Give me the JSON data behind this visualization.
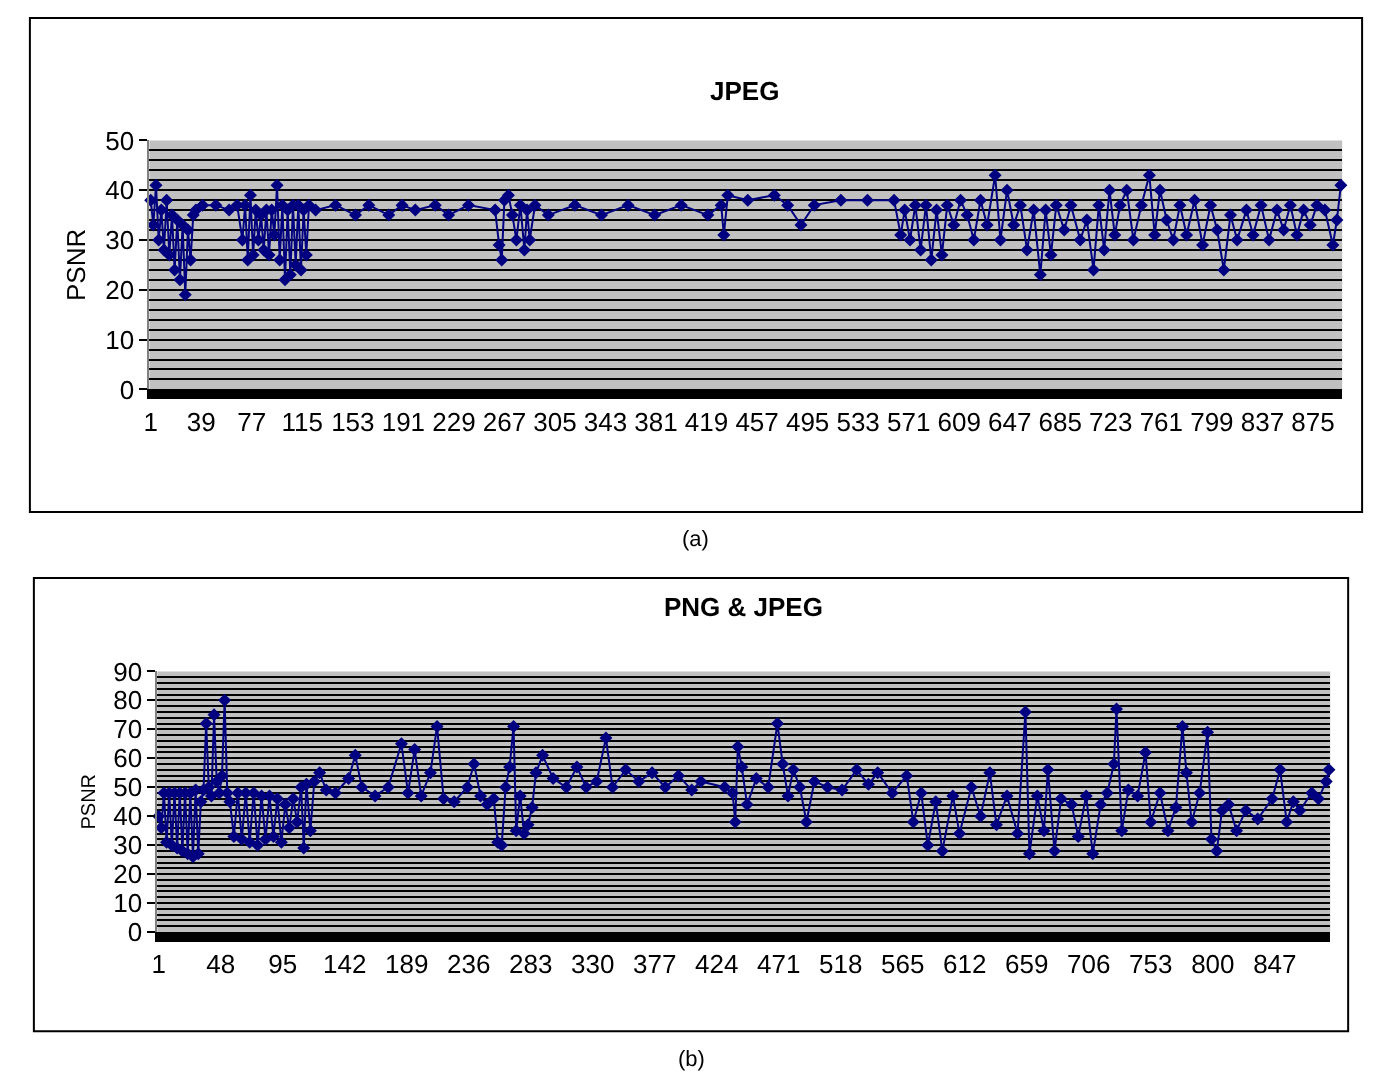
{
  "chart_data": [
    {
      "type": "line",
      "title": "JPEG",
      "ylabel": "PSNR",
      "xlim": [
        0,
        897
      ],
      "ylim": [
        0,
        50
      ],
      "xticks": [
        1,
        39,
        77,
        115,
        153,
        191,
        229,
        267,
        305,
        343,
        381,
        419,
        457,
        495,
        533,
        571,
        609,
        647,
        685,
        723,
        761,
        799,
        837,
        875
      ],
      "yticks": [
        0,
        10,
        20,
        30,
        40,
        50
      ],
      "grid": "y",
      "marker": "diamond",
      "annotations": [
        "(a)"
      ],
      "series": [
        {
          "color": "#000080",
          "x": [
            1,
            3,
            5,
            7,
            9,
            11,
            13,
            15,
            17,
            19,
            21,
            23,
            25,
            27,
            29,
            31,
            33,
            35,
            40,
            50,
            60,
            66,
            70,
            72,
            74,
            76,
            78,
            80,
            82,
            84,
            86,
            88,
            90,
            92,
            94,
            96,
            98,
            100,
            102,
            104,
            106,
            108,
            110,
            112,
            114,
            116,
            118,
            120,
            125,
            140,
            155,
            165,
            180,
            190,
            200,
            215,
            225,
            240,
            260,
            263,
            265,
            267,
            270,
            273,
            276,
            279,
            282,
            284,
            286,
            290,
            300,
            320,
            340,
            360,
            380,
            400,
            420,
            430,
            432,
            435,
            450,
            470,
            480,
            490,
            500,
            520,
            540,
            560,
            565,
            568,
            572,
            576,
            580,
            584,
            588,
            592,
            596,
            600,
            605,
            610,
            615,
            620,
            625,
            630,
            636,
            640,
            645,
            650,
            655,
            660,
            665,
            670,
            674,
            678,
            682,
            688,
            693,
            700,
            705,
            710,
            714,
            718,
            722,
            726,
            730,
            735,
            740,
            746,
            752,
            756,
            760,
            765,
            770,
            775,
            780,
            786,
            792,
            798,
            803,
            808,
            813,
            818,
            825,
            830,
            836,
            842,
            848,
            853,
            858,
            863,
            868,
            873,
            878,
            884,
            890,
            893,
            896
          ],
          "values": [
            38,
            33,
            41,
            30,
            36,
            28,
            38,
            27,
            35,
            24,
            34,
            22,
            33,
            19,
            32,
            26,
            35,
            36,
            37,
            37,
            36,
            37,
            30,
            37,
            26,
            39,
            27,
            36,
            30,
            35,
            28,
            36,
            27,
            36,
            31,
            41,
            26,
            37,
            22,
            36,
            23,
            37,
            25,
            37,
            24,
            36,
            27,
            37,
            36,
            37,
            35,
            37,
            35,
            37,
            36,
            37,
            35,
            37,
            36,
            29,
            26,
            38,
            39,
            35,
            30,
            37,
            28,
            36,
            30,
            37,
            35,
            37,
            35,
            37,
            35,
            37,
            35,
            37,
            31,
            39,
            38,
            39,
            37,
            33,
            37,
            38,
            38,
            38,
            31,
            36,
            30,
            37,
            28,
            37,
            26,
            36,
            27,
            37,
            33,
            38,
            35,
            30,
            38,
            33,
            43,
            30,
            40,
            33,
            37,
            28,
            36,
            23,
            36,
            27,
            37,
            32,
            37,
            30,
            34,
            24,
            37,
            28,
            40,
            31,
            37,
            40,
            30,
            37,
            43,
            31,
            40,
            34,
            30,
            37,
            31,
            38,
            29,
            37,
            32,
            24,
            35,
            30,
            36,
            31,
            37,
            30,
            36,
            32,
            37,
            31,
            36,
            33,
            37,
            36,
            29,
            34,
            41
          ]
        }
      ]
    },
    {
      "type": "line",
      "title": "PNG & JPEG",
      "ylabel": "PSNR",
      "xlim": [
        0,
        889
      ],
      "ylim": [
        0,
        90
      ],
      "xticks": [
        1,
        48,
        95,
        142,
        189,
        236,
        283,
        330,
        377,
        424,
        471,
        518,
        565,
        612,
        659,
        706,
        753,
        800,
        847
      ],
      "yticks": [
        0,
        10,
        20,
        30,
        40,
        50,
        60,
        70,
        80,
        90
      ],
      "grid": "y",
      "marker": "diamond",
      "annotations": [
        "(b)"
      ],
      "series": [
        {
          "color": "#000080",
          "x": [
            1,
            3,
            5,
            7,
            9,
            11,
            13,
            15,
            17,
            19,
            21,
            23,
            25,
            27,
            29,
            31,
            33,
            35,
            37,
            39,
            41,
            43,
            45,
            47,
            49,
            51,
            53,
            55,
            58,
            61,
            64,
            67,
            70,
            73,
            76,
            79,
            82,
            85,
            88,
            91,
            94,
            97,
            100,
            103,
            106,
            109,
            111,
            113,
            116,
            119,
            123,
            128,
            135,
            145,
            150,
            155,
            165,
            175,
            185,
            190,
            195,
            200,
            207,
            212,
            217,
            225,
            235,
            240,
            245,
            250,
            255,
            258,
            261,
            264,
            267,
            270,
            272,
            275,
            278,
            281,
            284,
            287,
            292,
            300,
            310,
            318,
            325,
            333,
            340,
            345,
            355,
            365,
            375,
            385,
            395,
            405,
            412,
            430,
            436,
            438,
            440,
            443,
            447,
            454,
            463,
            470,
            474,
            478,
            482,
            487,
            492,
            498,
            508,
            519,
            530,
            539,
            546,
            557,
            568,
            573,
            579,
            584,
            590,
            595,
            603,
            608,
            617,
            624,
            631,
            636,
            644,
            652,
            658,
            661,
            667,
            672,
            675,
            680,
            685,
            693,
            698,
            704,
            709,
            715,
            720,
            725,
            727,
            731,
            736,
            743,
            749,
            753,
            760,
            766,
            772,
            777,
            780,
            784,
            790,
            796,
            799,
            803,
            807,
            812,
            818,
            825,
            834,
            845,
            851,
            856,
            861,
            866,
            875,
            880,
            886,
            888
          ],
          "values": [
            40,
            36,
            48,
            31,
            48,
            30,
            48,
            29,
            48,
            28,
            48,
            27,
            48,
            26,
            49,
            27,
            45,
            49,
            72,
            50,
            47,
            75,
            52,
            48,
            54,
            80,
            48,
            45,
            33,
            48,
            32,
            48,
            31,
            48,
            30,
            47,
            32,
            47,
            33,
            46,
            31,
            44,
            36,
            46,
            38,
            50,
            29,
            51,
            35,
            52,
            55,
            49,
            48,
            53,
            61,
            50,
            47,
            50,
            65,
            48,
            63,
            47,
            55,
            71,
            46,
            45,
            50,
            58,
            47,
            44,
            46,
            31,
            30,
            50,
            57,
            71,
            35,
            47,
            34,
            37,
            43,
            55,
            61,
            53,
            50,
            57,
            50,
            52,
            67,
            50,
            56,
            52,
            55,
            50,
            54,
            49,
            52,
            50,
            48,
            38,
            64,
            57,
            44,
            53,
            50,
            72,
            58,
            47,
            56,
            50,
            38,
            52,
            50,
            49,
            56,
            51,
            55,
            48,
            54,
            38,
            48,
            30,
            45,
            28,
            47,
            34,
            50,
            40,
            55,
            37,
            47,
            34,
            76,
            27,
            47,
            35,
            56,
            28,
            46,
            44,
            33,
            47,
            27,
            44,
            48,
            58,
            77,
            35,
            49,
            47,
            62,
            38,
            48,
            35,
            43,
            71,
            55,
            38,
            48,
            69,
            32,
            28,
            42,
            44,
            35,
            42,
            39,
            46,
            56,
            38,
            45,
            42,
            48,
            46,
            52,
            56
          ]
        }
      ]
    }
  ]
}
